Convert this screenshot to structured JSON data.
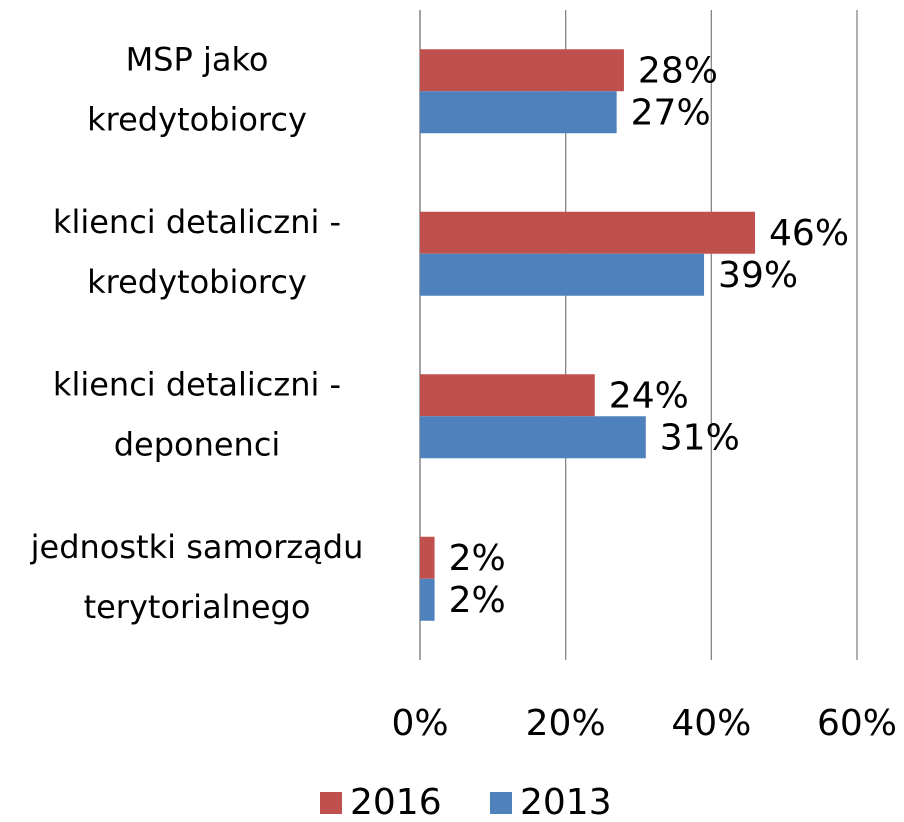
{
  "chart_data": {
    "type": "bar",
    "orientation": "horizontal",
    "categories": [
      [
        "MSP jako",
        "kredytobiorcy"
      ],
      [
        "klienci detaliczni -",
        "kredytobiorcy"
      ],
      [
        "klienci detaliczni -",
        "deponenci"
      ],
      [
        "jednostki samorządu",
        "terytorialnego"
      ]
    ],
    "series": [
      {
        "name": "2016",
        "color": "#c0504d",
        "values": [
          28,
          46,
          24,
          2
        ],
        "value_labels": [
          "28%",
          "46%",
          "24%",
          "2%"
        ]
      },
      {
        "name": "2013",
        "color": "#4f81bd",
        "values": [
          27,
          39,
          31,
          2
        ],
        "value_labels": [
          "27%",
          "39%",
          "31%",
          "2%"
        ]
      }
    ],
    "xlim": [
      0,
      60
    ],
    "xticks": [
      {
        "value": 0,
        "label": "0%"
      },
      {
        "value": 20,
        "label": "20%"
      },
      {
        "value": 40,
        "label": "40%"
      },
      {
        "value": 60,
        "label": "60%"
      }
    ],
    "grid": true,
    "legend": "bottom"
  }
}
